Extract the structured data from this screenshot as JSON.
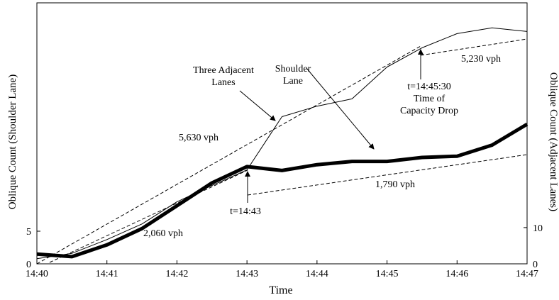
{
  "chart_data": {
    "type": "line",
    "x_label": "Time",
    "y_label": "Oblique Count (Shoulder Lane)",
    "y2_label": "Oblique Count (Adjacent Lanes)",
    "x": [
      "14:40:00",
      "14:40:30",
      "14:41:00",
      "14:41:30",
      "14:42:00",
      "14:42:30",
      "14:43:00",
      "14:43:30",
      "14:44:00",
      "14:44:30",
      "14:45:00",
      "14:45:30",
      "14:46:00",
      "14:46:30",
      "14:47:00"
    ],
    "xlim": [
      "14:40",
      "14:47"
    ],
    "xticks": [
      "14:40",
      "14:41",
      "14:42",
      "14:43",
      "14:44",
      "14:45",
      "14:46",
      "14:47"
    ],
    "ylim": [
      0,
      40
    ],
    "yticks": [
      0,
      5
    ],
    "y2lim": [
      0,
      72
    ],
    "y2ticks": [
      0,
      10
    ],
    "series": [
      {
        "name": "Shoulder Lane",
        "color": "#000000",
        "width": 5,
        "values": [
          1.5,
          1.1,
          2.9,
          5.4,
          8.9,
          12.4,
          14.9,
          14.3,
          15.2,
          15.7,
          15.7,
          16.3,
          16.5,
          18.2,
          21.4
        ]
      },
      {
        "name": "Three Adjacent Lanes",
        "color": "#000000",
        "width": 1,
        "axis": "y2",
        "values": [
          1.4,
          2.9,
          6.7,
          11.0,
          17.1,
          21.6,
          25.9,
          40.6,
          43.5,
          45.5,
          54.3,
          59.6,
          63.5,
          65.1,
          64.1
        ]
      }
    ],
    "annotations": [
      {
        "lines": [
          "Three Adjacent",
          "Lanes"
        ]
      },
      {
        "lines": [
          "Shoulder",
          "Lane"
        ]
      },
      {
        "lines": [
          "5,630 vph"
        ]
      },
      {
        "lines": [
          "5,230 vph"
        ]
      },
      {
        "lines": [
          "t=14:45:30",
          "Time of",
          "Capacity Drop"
        ]
      },
      {
        "lines": [
          "1,790 vph"
        ]
      },
      {
        "lines": [
          "2,060 vph"
        ]
      },
      {
        "lines": [
          "t=14:43"
        ]
      }
    ]
  }
}
